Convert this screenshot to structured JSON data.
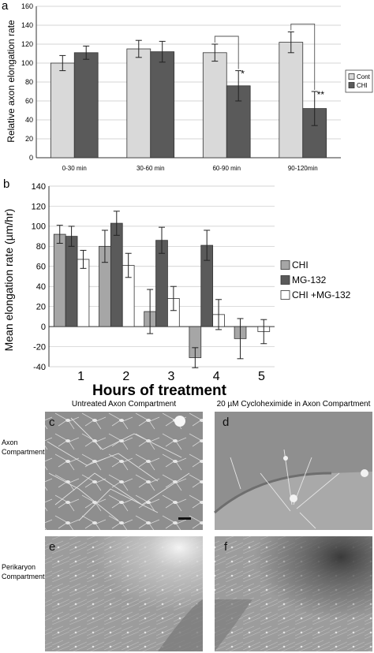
{
  "chart_data": [
    {
      "panel": "a",
      "type": "bar",
      "ylabel": "Relative axon elongation rate",
      "categories": [
        "0-30 min",
        "30-60 min",
        "60-90 min",
        "90-120min"
      ],
      "ylim": [
        0,
        160
      ],
      "yticks": [
        0,
        20,
        40,
        60,
        80,
        100,
        120,
        140,
        160
      ],
      "legend_position": "right",
      "series": [
        {
          "name": "Cont",
          "color": "#d9d9d9",
          "values": [
            100,
            115,
            111,
            122
          ],
          "errors": [
            8,
            9,
            9,
            11
          ]
        },
        {
          "name": "CHI",
          "color": "#5a5a5a",
          "values": [
            111,
            112,
            76,
            52
          ],
          "errors": [
            7,
            11,
            16,
            18
          ]
        }
      ],
      "significance": [
        {
          "category": 2,
          "label": "*"
        },
        {
          "category": 3,
          "label": "**"
        }
      ]
    },
    {
      "panel": "b",
      "type": "bar",
      "ylabel": "Mean elongation rate (µm/hr)",
      "xlabel": "Hours of treatment",
      "categories": [
        "1",
        "2",
        "3",
        "4",
        "5"
      ],
      "ylim": [
        -40,
        140
      ],
      "yticks": [
        -40,
        -20,
        0,
        20,
        40,
        60,
        80,
        100,
        120,
        140
      ],
      "legend_position": "right",
      "series": [
        {
          "name": "CHI",
          "color": "#a6a6a6",
          "values": [
            92,
            80,
            15,
            -31,
            -12
          ],
          "errors": [
            9,
            16,
            22,
            10,
            20
          ]
        },
        {
          "name": "MG-132",
          "color": "#5a5a5a",
          "values": [
            90,
            103,
            86,
            81,
            null
          ],
          "errors": [
            10,
            12,
            13,
            15,
            null
          ]
        },
        {
          "name": "CHI +MG-132",
          "color": "#ffffff",
          "values": [
            67,
            61,
            28,
            12,
            -5
          ],
          "errors": [
            9,
            12,
            12,
            15,
            12
          ]
        }
      ]
    }
  ],
  "panel_a_label": "a",
  "panel_b_label": "b",
  "micrographs": {
    "col_left_title": "Untreated Axon Compartment",
    "col_right_title": "20 µM Cycloheximide in Axon Compartment",
    "row_top_label": [
      "Axon",
      "Compartment"
    ],
    "row_bottom_label": [
      "Perikaryon",
      "Compartment"
    ],
    "panel_labels": [
      "c",
      "d",
      "e",
      "f"
    ]
  }
}
